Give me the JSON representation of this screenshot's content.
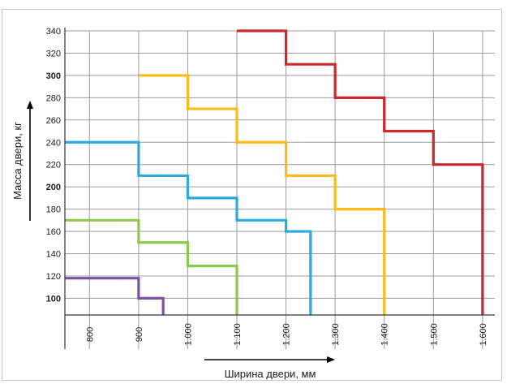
{
  "chart_data": {
    "type": "line",
    "title": "",
    "xlabel": "Ширина двери, мм",
    "ylabel": "Масса двери, кг",
    "xlim": [
      750,
      1625
    ],
    "ylim": [
      85,
      340
    ],
    "x_ticks": [
      800,
      900,
      1000,
      1100,
      1200,
      1300,
      1400,
      1500,
      1600
    ],
    "x_tick_labels": [
      "800",
      "900",
      "1.000",
      "1.100",
      "1.200",
      "1.300",
      "1.400",
      "1.500",
      "1.600"
    ],
    "y_ticks": [
      100,
      120,
      140,
      160,
      180,
      200,
      220,
      240,
      260,
      280,
      300,
      320,
      340
    ],
    "y_tick_labels": [
      "100",
      "120",
      "140",
      "160",
      "180",
      "200",
      "220",
      "240",
      "260",
      "280",
      "300",
      "320",
      "340"
    ],
    "y_bold_ticks": [
      100,
      200,
      300
    ],
    "grid": true,
    "step_style": "horizontal-then-vertical",
    "series": [
      {
        "color": "#7b52a1",
        "x": [
          750,
          900,
          950
        ],
        "y": [
          118,
          100,
          85
        ]
      },
      {
        "color": "#8cc84b",
        "x": [
          750,
          900,
          1000,
          1100
        ],
        "y": [
          170,
          150,
          129,
          85
        ]
      },
      {
        "color": "#2aaae1",
        "x": [
          750,
          900,
          1000,
          1100,
          1200,
          1250
        ],
        "y": [
          240,
          210,
          190,
          170,
          160,
          85
        ]
      },
      {
        "color": "#fbbc1b",
        "x": [
          900,
          1000,
          1100,
          1200,
          1300,
          1400
        ],
        "y": [
          300,
          270,
          240,
          210,
          180,
          85
        ]
      },
      {
        "color": "#c9282d",
        "x": [
          1100,
          1200,
          1300,
          1400,
          1500,
          1600
        ],
        "y": [
          340,
          310,
          280,
          250,
          220,
          85
        ]
      }
    ]
  }
}
